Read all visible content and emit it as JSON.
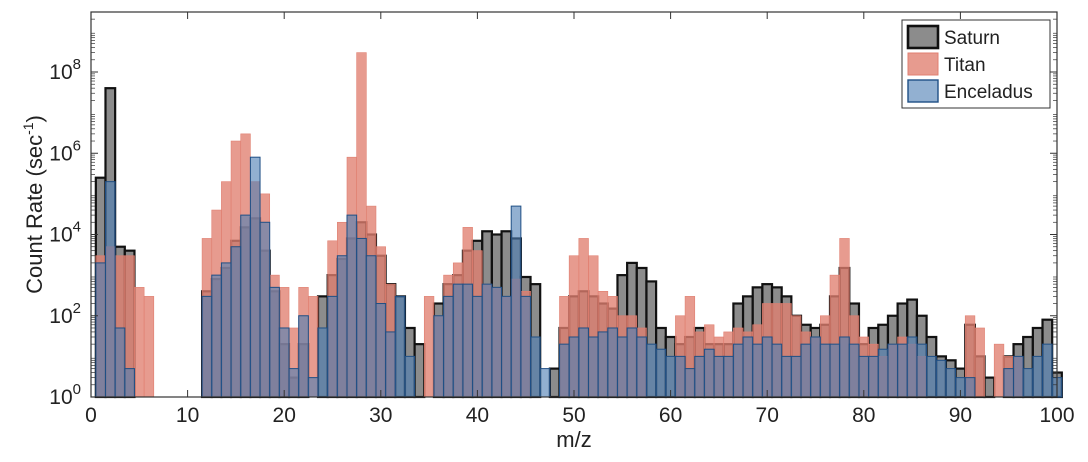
{
  "chart_data": {
    "type": "bar",
    "xlabel": "m/z",
    "ylabel_base": "Count Rate (sec",
    "ylabel_exp": "-1",
    "ylabel_close": ")",
    "xlim": [
      0,
      100
    ],
    "ylim": [
      1,
      3000000000
    ],
    "yscale": "log",
    "xticks": [
      0,
      10,
      20,
      30,
      40,
      50,
      60,
      70,
      80,
      90,
      100
    ],
    "ytick_base": "10",
    "yticks_exp": [
      "0",
      "2",
      "4",
      "6",
      "8"
    ],
    "legend_position": "top-right",
    "series": [
      {
        "name": "Saturn",
        "color": "#808080",
        "edge": "#111111",
        "values": [
          {
            "x": 1,
            "y": 250000
          },
          {
            "x": 2,
            "y": 40000000
          },
          {
            "x": 3,
            "y": 5000
          },
          {
            "x": 4,
            "y": 4000
          },
          {
            "x": 12,
            "y": 400
          },
          {
            "x": 13,
            "y": 800
          },
          {
            "x": 14,
            "y": 1500
          },
          {
            "x": 15,
            "y": 7000
          },
          {
            "x": 16,
            "y": 15000
          },
          {
            "x": 17,
            "y": 25000
          },
          {
            "x": 18,
            "y": 4000
          },
          {
            "x": 19,
            "y": 400
          },
          {
            "x": 20,
            "y": 20
          },
          {
            "x": 21,
            "y": 3
          },
          {
            "x": 22,
            "y": 20
          },
          {
            "x": 24,
            "y": 300
          },
          {
            "x": 25,
            "y": 1000
          },
          {
            "x": 26,
            "y": 2500
          },
          {
            "x": 27,
            "y": 8000
          },
          {
            "x": 28,
            "y": 20000
          },
          {
            "x": 29,
            "y": 10000
          },
          {
            "x": 30,
            "y": 3000
          },
          {
            "x": 31,
            "y": 600
          },
          {
            "x": 32,
            "y": 300
          },
          {
            "x": 33,
            "y": 50
          },
          {
            "x": 34,
            "y": 20
          },
          {
            "x": 36,
            "y": 200
          },
          {
            "x": 37,
            "y": 600
          },
          {
            "x": 38,
            "y": 1000
          },
          {
            "x": 39,
            "y": 4000
          },
          {
            "x": 40,
            "y": 7000
          },
          {
            "x": 41,
            "y": 12000
          },
          {
            "x": 42,
            "y": 10000
          },
          {
            "x": 43,
            "y": 12000
          },
          {
            "x": 44,
            "y": 8000
          },
          {
            "x": 45,
            "y": 900
          },
          {
            "x": 46,
            "y": 600
          },
          {
            "x": 48,
            "y": 5
          },
          {
            "x": 49,
            "y": 50
          },
          {
            "x": 50,
            "y": 300
          },
          {
            "x": 51,
            "y": 400
          },
          {
            "x": 52,
            "y": 300
          },
          {
            "x": 53,
            "y": 200
          },
          {
            "x": 54,
            "y": 150
          },
          {
            "x": 55,
            "y": 1000
          },
          {
            "x": 56,
            "y": 2000
          },
          {
            "x": 57,
            "y": 1500
          },
          {
            "x": 58,
            "y": 700
          },
          {
            "x": 59,
            "y": 50
          },
          {
            "x": 60,
            "y": 30
          },
          {
            "x": 61,
            "y": 20
          },
          {
            "x": 62,
            "y": 30
          },
          {
            "x": 63,
            "y": 50
          },
          {
            "x": 64,
            "y": 20
          },
          {
            "x": 65,
            "y": 20
          },
          {
            "x": 66,
            "y": 20
          },
          {
            "x": 67,
            "y": 200
          },
          {
            "x": 68,
            "y": 300
          },
          {
            "x": 69,
            "y": 500
          },
          {
            "x": 70,
            "y": 600
          },
          {
            "x": 71,
            "y": 500
          },
          {
            "x": 72,
            "y": 300
          },
          {
            "x": 73,
            "y": 100
          },
          {
            "x": 74,
            "y": 60
          },
          {
            "x": 75,
            "y": 50
          },
          {
            "x": 76,
            "y": 60
          },
          {
            "x": 77,
            "y": 300
          },
          {
            "x": 78,
            "y": 1500
          },
          {
            "x": 79,
            "y": 200
          },
          {
            "x": 80,
            "y": 20
          },
          {
            "x": 81,
            "y": 50
          },
          {
            "x": 82,
            "y": 60
          },
          {
            "x": 83,
            "y": 100
          },
          {
            "x": 84,
            "y": 200
          },
          {
            "x": 85,
            "y": 250
          },
          {
            "x": 86,
            "y": 100
          },
          {
            "x": 87,
            "y": 30
          },
          {
            "x": 88,
            "y": 10
          },
          {
            "x": 89,
            "y": 8
          },
          {
            "x": 90,
            "y": 5
          },
          {
            "x": 91,
            "y": 60
          },
          {
            "x": 92,
            "y": 10
          },
          {
            "x": 93,
            "y": 3
          },
          {
            "x": 95,
            "y": 10
          },
          {
            "x": 96,
            "y": 20
          },
          {
            "x": 97,
            "y": 30
          },
          {
            "x": 98,
            "y": 50
          },
          {
            "x": 99,
            "y": 80
          },
          {
            "x": 100,
            "y": 4
          }
        ]
      },
      {
        "name": "Titan",
        "color": "#E07F70",
        "edge": "#E07F70",
        "values": [
          {
            "x": 1,
            "y": 3000
          },
          {
            "x": 2,
            "y": 5000
          },
          {
            "x": 3,
            "y": 3000
          },
          {
            "x": 4,
            "y": 3000
          },
          {
            "x": 5,
            "y": 500
          },
          {
            "x": 6,
            "y": 300
          },
          {
            "x": 12,
            "y": 8000
          },
          {
            "x": 13,
            "y": 40000
          },
          {
            "x": 14,
            "y": 200000
          },
          {
            "x": 15,
            "y": 2000000
          },
          {
            "x": 16,
            "y": 3000000
          },
          {
            "x": 17,
            "y": 200000
          },
          {
            "x": 18,
            "y": 100000
          },
          {
            "x": 19,
            "y": 1000
          },
          {
            "x": 20,
            "y": 500
          },
          {
            "x": 21,
            "y": 50
          },
          {
            "x": 22,
            "y": 500
          },
          {
            "x": 23,
            "y": 300
          },
          {
            "x": 25,
            "y": 7000
          },
          {
            "x": 26,
            "y": 20000
          },
          {
            "x": 27,
            "y": 800000
          },
          {
            "x": 28,
            "y": 300000000
          },
          {
            "x": 29,
            "y": 50000
          },
          {
            "x": 30,
            "y": 5000
          },
          {
            "x": 31,
            "y": 600
          },
          {
            "x": 35,
            "y": 300
          },
          {
            "x": 36,
            "y": 100
          },
          {
            "x": 37,
            "y": 1000
          },
          {
            "x": 38,
            "y": 2000
          },
          {
            "x": 39,
            "y": 15000
          },
          {
            "x": 40,
            "y": 4000
          },
          {
            "x": 41,
            "y": 600
          },
          {
            "x": 42,
            "y": 500
          },
          {
            "x": 43,
            "y": 300
          },
          {
            "x": 44,
            "y": 800
          },
          {
            "x": 45,
            "y": 400
          },
          {
            "x": 49,
            "y": 300
          },
          {
            "x": 50,
            "y": 3000
          },
          {
            "x": 51,
            "y": 8000
          },
          {
            "x": 52,
            "y": 3000
          },
          {
            "x": 53,
            "y": 400
          },
          {
            "x": 54,
            "y": 300
          },
          {
            "x": 55,
            "y": 100
          },
          {
            "x": 56,
            "y": 100
          },
          {
            "x": 57,
            "y": 50
          },
          {
            "x": 61,
            "y": 100
          },
          {
            "x": 62,
            "y": 300
          },
          {
            "x": 63,
            "y": 40
          },
          {
            "x": 64,
            "y": 60
          },
          {
            "x": 65,
            "y": 30
          },
          {
            "x": 66,
            "y": 40
          },
          {
            "x": 67,
            "y": 50
          },
          {
            "x": 68,
            "y": 40
          },
          {
            "x": 69,
            "y": 60
          },
          {
            "x": 70,
            "y": 200
          },
          {
            "x": 71,
            "y": 200
          },
          {
            "x": 72,
            "y": 200
          },
          {
            "x": 73,
            "y": 100
          },
          {
            "x": 74,
            "y": 40
          },
          {
            "x": 75,
            "y": 30
          },
          {
            "x": 76,
            "y": 100
          },
          {
            "x": 77,
            "y": 1000
          },
          {
            "x": 78,
            "y": 8000
          },
          {
            "x": 79,
            "y": 100
          },
          {
            "x": 80,
            "y": 30
          },
          {
            "x": 81,
            "y": 20
          },
          {
            "x": 82,
            "y": 10
          },
          {
            "x": 83,
            "y": 20
          },
          {
            "x": 84,
            "y": 30
          },
          {
            "x": 85,
            "y": 20
          },
          {
            "x": 86,
            "y": 10
          },
          {
            "x": 91,
            "y": 100
          },
          {
            "x": 92,
            "y": 50
          },
          {
            "x": 94,
            "y": 20
          },
          {
            "x": 95,
            "y": 10
          },
          {
            "x": 96,
            "y": 10
          }
        ]
      },
      {
        "name": "Enceladus",
        "color": "#4F7FB5",
        "edge": "#1F4F85",
        "values": [
          {
            "x": 1,
            "y": 2000
          },
          {
            "x": 2,
            "y": 200000
          },
          {
            "x": 3,
            "y": 50
          },
          {
            "x": 4,
            "y": 5
          },
          {
            "x": 12,
            "y": 300
          },
          {
            "x": 13,
            "y": 1000
          },
          {
            "x": 14,
            "y": 2000
          },
          {
            "x": 15,
            "y": 5000
          },
          {
            "x": 16,
            "y": 30000
          },
          {
            "x": 17,
            "y": 800000
          },
          {
            "x": 18,
            "y": 20000
          },
          {
            "x": 19,
            "y": 500
          },
          {
            "x": 20,
            "y": 50
          },
          {
            "x": 21,
            "y": 5
          },
          {
            "x": 22,
            "y": 100
          },
          {
            "x": 23,
            "y": 3
          },
          {
            "x": 24,
            "y": 50
          },
          {
            "x": 25,
            "y": 300
          },
          {
            "x": 26,
            "y": 3000
          },
          {
            "x": 27,
            "y": 30000
          },
          {
            "x": 28,
            "y": 8000
          },
          {
            "x": 29,
            "y": 3000
          },
          {
            "x": 30,
            "y": 200
          },
          {
            "x": 31,
            "y": 40
          },
          {
            "x": 32,
            "y": 300
          },
          {
            "x": 33,
            "y": 10
          },
          {
            "x": 36,
            "y": 100
          },
          {
            "x": 37,
            "y": 300
          },
          {
            "x": 38,
            "y": 600
          },
          {
            "x": 39,
            "y": 600
          },
          {
            "x": 40,
            "y": 300
          },
          {
            "x": 41,
            "y": 600
          },
          {
            "x": 42,
            "y": 500
          },
          {
            "x": 43,
            "y": 300
          },
          {
            "x": 44,
            "y": 50000
          },
          {
            "x": 45,
            "y": 300
          },
          {
            "x": 46,
            "y": 30
          },
          {
            "x": 47,
            "y": 5
          },
          {
            "x": 49,
            "y": 20
          },
          {
            "x": 50,
            "y": 30
          },
          {
            "x": 51,
            "y": 50
          },
          {
            "x": 52,
            "y": 30
          },
          {
            "x": 53,
            "y": 40
          },
          {
            "x": 54,
            "y": 50
          },
          {
            "x": 55,
            "y": 30
          },
          {
            "x": 56,
            "y": 50
          },
          {
            "x": 57,
            "y": 30
          },
          {
            "x": 58,
            "y": 20
          },
          {
            "x": 59,
            "y": 15
          },
          {
            "x": 60,
            "y": 10
          },
          {
            "x": 61,
            "y": 10
          },
          {
            "x": 62,
            "y": 5
          },
          {
            "x": 63,
            "y": 10
          },
          {
            "x": 64,
            "y": 15
          },
          {
            "x": 65,
            "y": 10
          },
          {
            "x": 66,
            "y": 10
          },
          {
            "x": 67,
            "y": 20
          },
          {
            "x": 68,
            "y": 30
          },
          {
            "x": 69,
            "y": 20
          },
          {
            "x": 70,
            "y": 30
          },
          {
            "x": 71,
            "y": 20
          },
          {
            "x": 72,
            "y": 10
          },
          {
            "x": 73,
            "y": 10
          },
          {
            "x": 74,
            "y": 20
          },
          {
            "x": 75,
            "y": 30
          },
          {
            "x": 76,
            "y": 20
          },
          {
            "x": 77,
            "y": 20
          },
          {
            "x": 78,
            "y": 30
          },
          {
            "x": 79,
            "y": 20
          },
          {
            "x": 80,
            "y": 10
          },
          {
            "x": 81,
            "y": 10
          },
          {
            "x": 82,
            "y": 15
          },
          {
            "x": 83,
            "y": 20
          },
          {
            "x": 84,
            "y": 20
          },
          {
            "x": 85,
            "y": 30
          },
          {
            "x": 86,
            "y": 20
          },
          {
            "x": 87,
            "y": 10
          },
          {
            "x": 88,
            "y": 8
          },
          {
            "x": 89,
            "y": 5
          },
          {
            "x": 90,
            "y": 3
          },
          {
            "x": 91,
            "y": 3
          },
          {
            "x": 95,
            "y": 5
          },
          {
            "x": 96,
            "y": 10
          },
          {
            "x": 97,
            "y": 5
          },
          {
            "x": 98,
            "y": 10
          },
          {
            "x": 99,
            "y": 20
          },
          {
            "x": 100,
            "y": 3
          }
        ]
      }
    ]
  }
}
